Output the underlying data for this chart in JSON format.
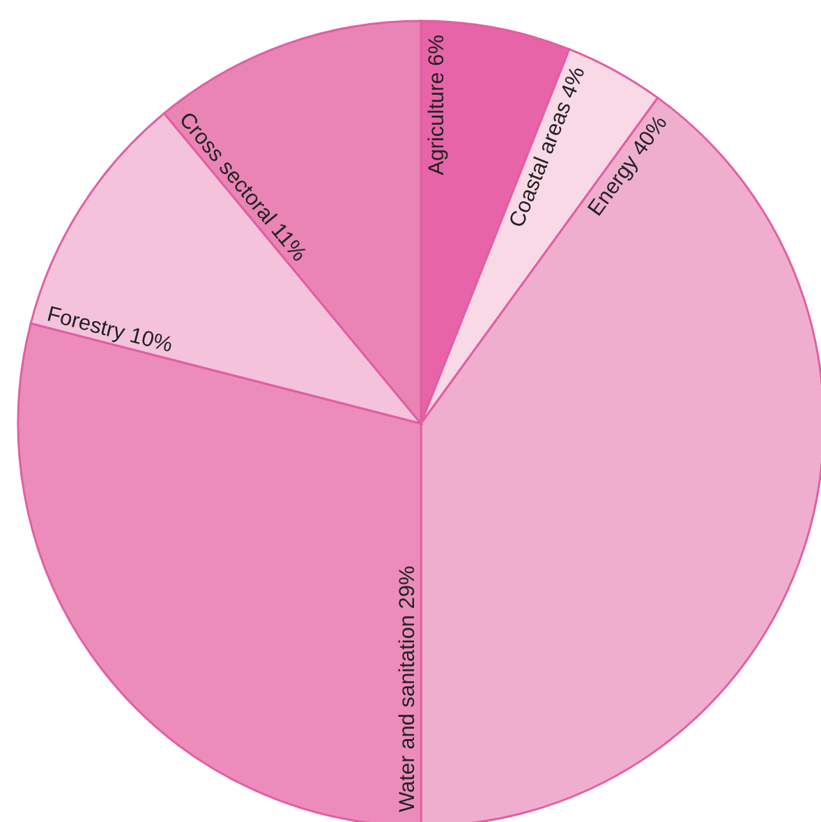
{
  "chart_data": {
    "type": "pie",
    "categories": [
      "Agriculture",
      "Coastal areas",
      "Energy",
      "Water and sanitation",
      "Forestry",
      "Cross sectoral"
    ],
    "values": [
      6,
      4,
      40,
      29,
      10,
      11
    ],
    "value_labels": [
      "6%",
      "4%",
      "40%",
      "29%",
      "10%",
      "11%"
    ],
    "colors": [
      "#e864a8",
      "#f9d9e6",
      "#f0aecf",
      "#ec8cbb",
      "#f4c3db",
      "#ea84b5"
    ]
  }
}
